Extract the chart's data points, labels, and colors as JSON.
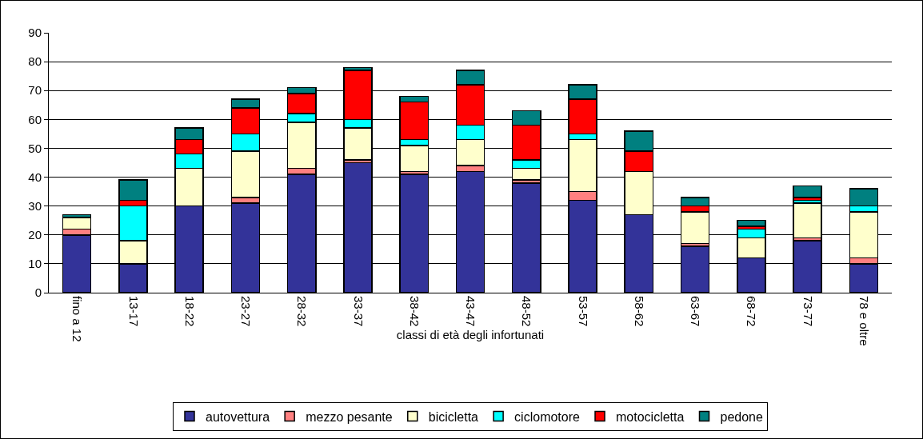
{
  "chart_data": {
    "type": "bar",
    "stacked": true,
    "xlabel": "classi di età degli infortunati",
    "categories": [
      "fino a 12",
      "13-17",
      "18-22",
      "23-27",
      "28-32",
      "33-37",
      "38-42",
      "43-47",
      "48-52",
      "53-57",
      "58-62",
      "63-67",
      "68-72",
      "73-77",
      "78 e oltre"
    ],
    "series": [
      {
        "name": "autovettura",
        "color": "#333399",
        "values": [
          20,
          10,
          30,
          31,
          41,
          45,
          41,
          42,
          38,
          32,
          27,
          16,
          12,
          18,
          10
        ]
      },
      {
        "name": "mezzo pesante",
        "color": "#ff8080",
        "values": [
          2,
          0,
          0,
          2,
          2,
          1,
          1,
          2,
          1,
          3,
          0,
          1,
          0,
          1,
          2
        ]
      },
      {
        "name": "bicicletta",
        "color": "#ffffcc",
        "values": [
          4,
          8,
          13,
          16,
          16,
          11,
          9,
          9,
          4,
          18,
          15,
          11,
          7,
          12,
          16
        ]
      },
      {
        "name": "ciclomotore",
        "color": "#00ffff",
        "values": [
          0,
          12,
          5,
          6,
          3,
          3,
          2,
          5,
          3,
          2,
          0,
          0,
          3,
          1,
          2
        ]
      },
      {
        "name": "motocicletta",
        "color": "#ff0000",
        "values": [
          0,
          2,
          5,
          9,
          7,
          17,
          13,
          14,
          12,
          12,
          7,
          2,
          1,
          1,
          0
        ]
      },
      {
        "name": "pedone",
        "color": "#008080",
        "values": [
          1,
          7,
          4,
          3,
          2,
          1,
          2,
          5,
          5,
          5,
          7,
          3,
          2,
          4,
          6
        ]
      }
    ],
    "ylim": [
      0,
      90
    ],
    "yticks": [
      0,
      10,
      20,
      30,
      40,
      50,
      60,
      70,
      80,
      90
    ],
    "grid": "y",
    "legend": "bottom"
  }
}
